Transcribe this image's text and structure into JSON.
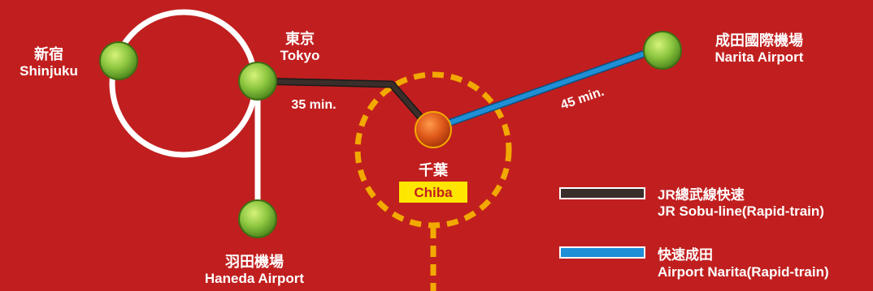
{
  "stations": {
    "shinjuku": {
      "name_cn": "新宿",
      "name_en": "Shinjuku"
    },
    "tokyo": {
      "name_cn": "東京",
      "name_en": "Tokyo"
    },
    "haneda": {
      "name_cn": "羽田機場",
      "name_en": "Haneda Airport"
    },
    "chiba": {
      "name_cn": "千葉",
      "name_en": "Chiba"
    },
    "narita": {
      "name_cn": "成田國際機場",
      "name_en": "Narita Airport"
    }
  },
  "travel_times": {
    "tokyo_chiba": "35 min.",
    "chiba_narita": "45 min."
  },
  "legend": {
    "sobu": {
      "name_cn": "JR總武線快速",
      "name_en": "JR Sobu-line(Rapid-train)",
      "color": "#3a2e2a"
    },
    "airport_narita": {
      "name_cn": "快速成田",
      "name_en": "Airport Narita(Rapid-train)",
      "color": "#1f8fd6"
    }
  },
  "colors": {
    "background": "#c11f1f",
    "station_green": "#8cc63f",
    "station_chiba": "#e05a1a",
    "highlight_ring": "#f2a900",
    "chiba_label_bg": "#ffe600",
    "loop_line": "#ffffff"
  }
}
